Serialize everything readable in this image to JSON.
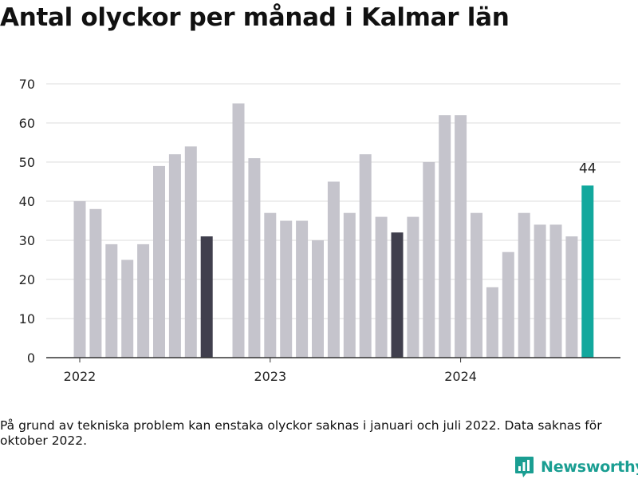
{
  "title": "Antal olyckor per månad i Kalmar län",
  "footnote": "På grund av tekniska problem kan enstaka olyckor saknas i januari och juli 2022. Data saknas för oktober 2022.",
  "logo": {
    "text": "Newsworthy",
    "icon": "bar-chart-speech-bubble-icon"
  },
  "colors": {
    "default": "#c5c4cc",
    "highlight": "#403f4d",
    "latest": "#12a89d"
  },
  "chart_data": {
    "type": "bar",
    "title": "Antal olyckor per månad i Kalmar län",
    "xlabel": "",
    "ylabel": "",
    "ylim": [
      0,
      70
    ],
    "yticks": [
      0,
      10,
      20,
      30,
      40,
      50,
      60,
      70
    ],
    "grid": true,
    "xtick_labels": [
      "2022",
      "2023",
      "2024"
    ],
    "x": [
      "2022-01",
      "2022-02",
      "2022-03",
      "2022-04",
      "2022-05",
      "2022-06",
      "2022-07",
      "2022-08",
      "2022-09",
      "2022-10",
      "2022-11",
      "2022-12",
      "2023-01",
      "2023-02",
      "2023-03",
      "2023-04",
      "2023-05",
      "2023-06",
      "2023-07",
      "2023-08",
      "2023-09",
      "2023-10",
      "2023-11",
      "2023-12",
      "2024-01",
      "2024-02",
      "2024-03",
      "2024-04",
      "2024-05",
      "2024-06",
      "2024-07",
      "2024-08",
      "2024-09"
    ],
    "values": [
      40,
      38,
      29,
      25,
      29,
      49,
      52,
      54,
      31,
      null,
      65,
      51,
      37,
      35,
      35,
      30,
      45,
      37,
      52,
      36,
      32,
      36,
      50,
      62,
      62,
      37,
      18,
      27,
      37,
      34,
      34,
      31,
      44
    ],
    "highlighted": [
      "2022-09",
      "2023-09"
    ],
    "latest": "2024-09",
    "data_labels": [
      {
        "x": "2024-09",
        "text": "44"
      }
    ]
  }
}
